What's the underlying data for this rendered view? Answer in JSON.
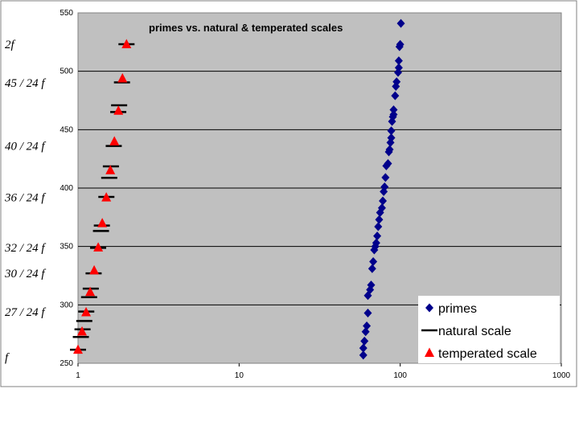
{
  "chart_data": {
    "type": "scatter",
    "title": "primes vs. natural & temperated scales",
    "xscale": "log",
    "xlim": [
      1,
      1000
    ],
    "ylim": [
      250,
      550
    ],
    "x_ticks": [
      "1",
      "10",
      "100",
      "1000"
    ],
    "y_ticks": [
      "250",
      "300",
      "350",
      "400",
      "450",
      "500",
      "550"
    ],
    "grid": "horizontal",
    "legend_position": "bottom-right",
    "series": [
      {
        "name": "primes",
        "marker": "diamond",
        "color": "#00008B",
        "points": [
          [
            59,
            257
          ],
          [
            59,
            263
          ],
          [
            60,
            269
          ],
          [
            61,
            277
          ],
          [
            62,
            282
          ],
          [
            63,
            293
          ],
          [
            63,
            308
          ],
          [
            65,
            313
          ],
          [
            66,
            317
          ],
          [
            67,
            331
          ],
          [
            68,
            337
          ],
          [
            69,
            347
          ],
          [
            70,
            350
          ],
          [
            71,
            353
          ],
          [
            72,
            359
          ],
          [
            73,
            367
          ],
          [
            74,
            373
          ],
          [
            75,
            379
          ],
          [
            77,
            383
          ],
          [
            78,
            389
          ],
          [
            79,
            397
          ],
          [
            80,
            401
          ],
          [
            81,
            409
          ],
          [
            82,
            419
          ],
          [
            84,
            421
          ],
          [
            85,
            431
          ],
          [
            86,
            433
          ],
          [
            87,
            439
          ],
          [
            88,
            443
          ],
          [
            88,
            449
          ],
          [
            89,
            457
          ],
          [
            90,
            461
          ],
          [
            91,
            463
          ],
          [
            91,
            467
          ],
          [
            93,
            479
          ],
          [
            94,
            487
          ],
          [
            95,
            491
          ],
          [
            97,
            499
          ],
          [
            98,
            503
          ],
          [
            98,
            509
          ],
          [
            99,
            521
          ],
          [
            100,
            523
          ],
          [
            101,
            541
          ]
        ]
      },
      {
        "name": "natural scale",
        "marker": "dash",
        "color": "#000000",
        "points": [
          [
            1.0,
            261.6
          ],
          [
            1.0417,
            272.5
          ],
          [
            1.0667,
            279.1
          ],
          [
            1.0938,
            286.2
          ],
          [
            1.125,
            294.3
          ],
          [
            1.1719,
            306.6
          ],
          [
            1.2,
            313.9
          ],
          [
            1.25,
            327.0
          ],
          [
            1.3333,
            348.8
          ],
          [
            1.3889,
            363.3
          ],
          [
            1.4063,
            367.9
          ],
          [
            1.5,
            392.4
          ],
          [
            1.5625,
            408.8
          ],
          [
            1.6,
            418.6
          ],
          [
            1.6667,
            436.0
          ],
          [
            1.7778,
            465.1
          ],
          [
            1.8,
            470.9
          ],
          [
            1.875,
            490.5
          ],
          [
            2.0,
            523.2
          ]
        ]
      },
      {
        "name": "temperated scale",
        "marker": "triangle",
        "color": "#FF0000",
        "points": [
          [
            1.0,
            261.6
          ],
          [
            1.0595,
            277.2
          ],
          [
            1.1225,
            293.7
          ],
          [
            1.1892,
            311.1
          ],
          [
            1.2599,
            329.6
          ],
          [
            1.3348,
            349.2
          ],
          [
            1.4142,
            370.0
          ],
          [
            1.4983,
            392.0
          ],
          [
            1.5874,
            415.3
          ],
          [
            1.6818,
            440.0
          ],
          [
            1.7818,
            466.2
          ],
          [
            1.8877,
            493.9
          ],
          [
            2.0,
            523.2
          ]
        ]
      }
    ],
    "annotations": [
      {
        "text": "2f",
        "y": 523
      },
      {
        "text": "45 / 24 f",
        "y": 490
      },
      {
        "text": "40 / 24 f",
        "y": 436
      },
      {
        "text": "36 / 24 f",
        "y": 392
      },
      {
        "text": "32 / 24 f",
        "y": 349
      },
      {
        "text": "30 / 24 f",
        "y": 327
      },
      {
        "text": "27 / 24 f",
        "y": 294
      },
      {
        "text": "f",
        "y": 255
      }
    ],
    "colors": {
      "plot_background": "#C0C0C0",
      "gridline": "#000000",
      "frame": "#808080"
    }
  }
}
